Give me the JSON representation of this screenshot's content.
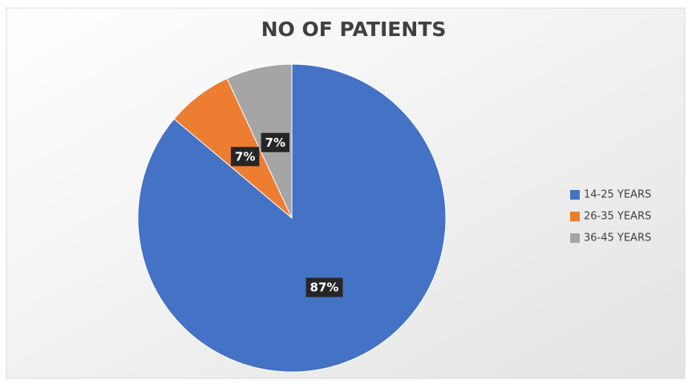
{
  "chart_data": {
    "type": "pie",
    "title": "NO OF PATIENTS",
    "categories": [
      "14-25 YEARS",
      "26-35 YEARS",
      "36-45 YEARS"
    ],
    "values": [
      87,
      7,
      7
    ],
    "value_labels": [
      "87%",
      "7%",
      "7%"
    ],
    "colors": [
      "#4472c4",
      "#ed7d31",
      "#a5a5a5"
    ],
    "legend": "right"
  }
}
